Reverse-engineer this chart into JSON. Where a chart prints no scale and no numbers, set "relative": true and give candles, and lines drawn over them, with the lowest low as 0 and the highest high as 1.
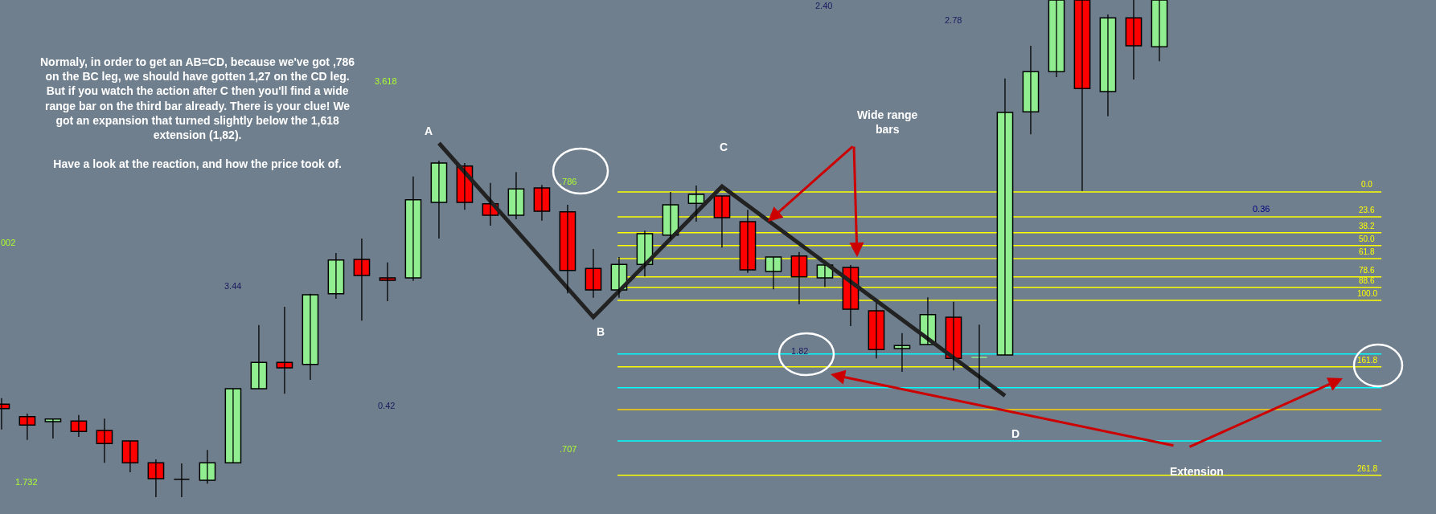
{
  "chart_data": {
    "type": "candlestick",
    "relative": true,
    "grid": false,
    "categories": [
      null,
      null,
      null,
      null,
      null,
      null,
      null,
      null,
      null,
      null,
      null,
      null,
      null,
      null,
      null,
      null,
      null,
      null,
      null,
      null,
      null,
      null,
      null,
      null,
      null,
      null,
      null,
      null,
      null,
      null,
      null,
      null,
      null,
      null,
      null,
      null,
      null,
      null,
      null,
      null,
      null,
      null,
      null,
      null,
      null,
      null
    ],
    "ohlc": [
      [
        0.187,
        0.199,
        0.136,
        0.178
      ],
      [
        0.162,
        0.168,
        0.115,
        0.145
      ],
      [
        0.152,
        0.157,
        0.118,
        0.157
      ],
      [
        0.153,
        0.165,
        0.121,
        0.132
      ],
      [
        0.134,
        0.158,
        0.069,
        0.108
      ],
      [
        0.113,
        0.113,
        0.05,
        0.069
      ],
      [
        0.069,
        0.076,
        0,
        0.037
      ],
      [
        0.036,
        0.068,
        0,
        0.036
      ],
      [
        0.034,
        0.095,
        0.027,
        0.069
      ],
      [
        0.069,
        0.218,
        0.069,
        0.218
      ],
      [
        0.218,
        0.346,
        0.218,
        0.271
      ],
      [
        0.271,
        0.383,
        0.208,
        0.26
      ],
      [
        0.267,
        0.409,
        0.236,
        0.407
      ],
      [
        0.409,
        0.491,
        0.399,
        0.477
      ],
      [
        0.478,
        0.52,
        0.355,
        0.446
      ],
      [
        0.441,
        0.472,
        0.394,
        0.436
      ],
      [
        0.441,
        0.645,
        0.435,
        0.598
      ],
      [
        0.593,
        0.677,
        0.52,
        0.672
      ],
      [
        0.666,
        0.672,
        0.578,
        0.593
      ],
      [
        0.59,
        0.632,
        0.546,
        0.567
      ],
      [
        0.567,
        0.654,
        0.559,
        0.62
      ],
      [
        0.622,
        0.628,
        0.556,
        0.575
      ],
      [
        0.574,
        0.588,
        0.41,
        0.456
      ],
      [
        0.46,
        0.499,
        0.401,
        0.417
      ],
      [
        0.417,
        0.483,
        0.401,
        0.468
      ],
      [
        0.468,
        0.536,
        0.444,
        0.53
      ],
      [
        0.527,
        0.614,
        0.519,
        0.588
      ],
      [
        0.591,
        0.627,
        0.554,
        0.609
      ],
      [
        0.606,
        0.606,
        0.502,
        0.562
      ],
      [
        0.554,
        0.578,
        0.451,
        0.457
      ],
      [
        0.454,
        0.483,
        0.418,
        0.483
      ],
      [
        0.485,
        0.493,
        0.388,
        0.443
      ],
      [
        0.441,
        0.467,
        0.423,
        0.467
      ],
      [
        0.462,
        0.467,
        0.344,
        0.378
      ],
      [
        0.375,
        0.391,
        0.279,
        0.297
      ],
      [
        0.299,
        0.33,
        0.252,
        0.305
      ],
      [
        0.307,
        0.402,
        0.307,
        0.367
      ],
      [
        0.362,
        0.393,
        0.255,
        0.279
      ],
      [
        0.281,
        0.347,
        0.218,
        0.281
      ],
      [
        0.286,
        0.842,
        0.286,
        0.774
      ],
      [
        0.775,
        0.908,
        0.73,
        0.856
      ],
      [
        0.856,
        1,
        0.845,
        1
      ],
      [
        1,
        1,
        0.616,
        0.822
      ],
      [
        0.816,
        0.971,
        0.766,
        0.964
      ],
      [
        0.964,
        1,
        0.84,
        0.908
      ],
      [
        0.906,
        1,
        0.877,
        1
      ]
    ],
    "colors": [
      "#ff0000",
      "#ff0000",
      "#90ee90",
      "#ff0000",
      "#ff0000",
      "#ff0000",
      "#ff0000",
      "#000000",
      "#90ee90",
      "#90ee90",
      "#90ee90",
      "#ff0000",
      "#90ee90",
      "#90ee90",
      "#ff0000",
      "#ff0000",
      "#90ee90",
      "#90ee90",
      "#ff0000",
      "#ff0000",
      "#90ee90",
      "#ff0000",
      "#ff0000",
      "#ff0000",
      "#90ee90",
      "#90ee90",
      "#90ee90",
      "#90ee90",
      "#ff0000",
      "#ff0000",
      "#90ee90",
      "#ff0000",
      "#90ee90",
      "#ff0000",
      "#ff0000",
      "#90ee90",
      "#90ee90",
      "#ff0000",
      "#90ee90",
      "#90ee90",
      "#90ee90",
      "#90ee90",
      "#ff0000",
      "#90ee90",
      "#ff0000",
      "#90ee90"
    ],
    "series": [
      {
        "type": "line",
        "color": "#222222",
        "values": [
          null,
          null,
          null,
          null,
          null,
          null,
          null,
          null,
          null,
          null,
          null,
          null,
          null,
          null,
          null,
          null,
          null,
          0.712,
          null,
          null,
          null,
          null,
          null,
          0.362,
          null,
          null,
          null,
          null,
          0.625,
          null,
          null,
          null,
          null,
          null,
          null,
          null,
          null,
          null,
          null,
          0.204,
          null,
          null,
          null,
          null,
          null,
          null
        ]
      }
    ],
    "ref_lines": [
      {
        "axis": "y",
        "value": 0.614,
        "color": "#ffff00"
      },
      {
        "axis": "y",
        "value": 0.564,
        "color": "#ffff00"
      },
      {
        "axis": "y",
        "value": 0.532,
        "color": "#ffff00"
      },
      {
        "axis": "y",
        "value": 0.506,
        "color": "#ffff00"
      },
      {
        "axis": "y",
        "value": 0.48,
        "color": "#ffff00"
      },
      {
        "axis": "y",
        "value": 0.443,
        "color": "#ffff00"
      },
      {
        "axis": "y",
        "value": 0.422,
        "color": "#ffff00"
      },
      {
        "axis": "y",
        "value": 0.396,
        "color": "#ffff00"
      },
      {
        "axis": "y",
        "value": 0.262,
        "color": "#ffff00"
      },
      {
        "axis": "y",
        "value": 0.044,
        "color": "#ffff00"
      },
      {
        "axis": "y",
        "value": 0.288,
        "color": "#00ffff"
      },
      {
        "axis": "y",
        "value": 0.22,
        "color": "#00ffff"
      },
      {
        "axis": "y",
        "value": 0.176,
        "color": "#ffd000"
      },
      {
        "axis": "y",
        "value": 0.113,
        "color": "#00ffff"
      }
    ],
    "annotations": [
      "Normaly, in order to get an AB=CD, because we've got ,786\non the BC leg, we should have gotten 1,27 on the CD leg.\nBut if you watch the action after C then you'll find a wide\nrange bar on the third bar already. There is your clue! We\ngot an expansion that turned slightly below the 1,618\nextension (1,82).\n\nHave a look at the reaction, and how the price took of.",
      "A",
      "B",
      "C",
      "D",
      "Wide range\nbars",
      "Extension",
      ".786",
      "1.82",
      "3.44",
      "0.42",
      "2.40",
      "2.78",
      "0.36",
      "1.732",
      "3.618",
      ".707",
      "002",
      "0.0",
      "23.6",
      "38.2",
      "50.0",
      "61.8",
      "78.6",
      "88.6",
      "100.0",
      "161.8",
      "261.8"
    ]
  }
}
